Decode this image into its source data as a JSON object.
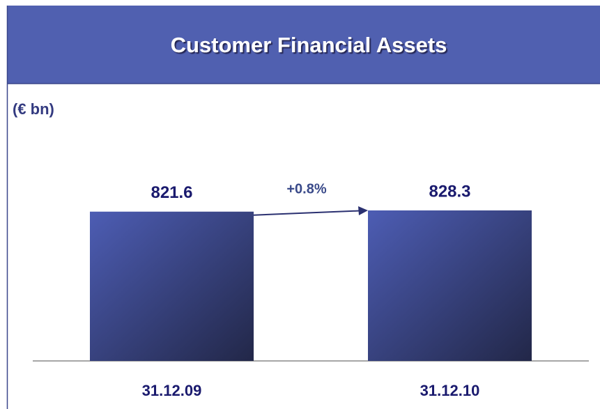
{
  "chart_data": {
    "type": "bar",
    "title": "Customer Financial Assets",
    "subtitle": "(€ bn)",
    "categories": [
      "31.12.09",
      "31.12.10"
    ],
    "values": [
      821.6,
      828.3
    ],
    "annotation": "+0.8%"
  }
}
